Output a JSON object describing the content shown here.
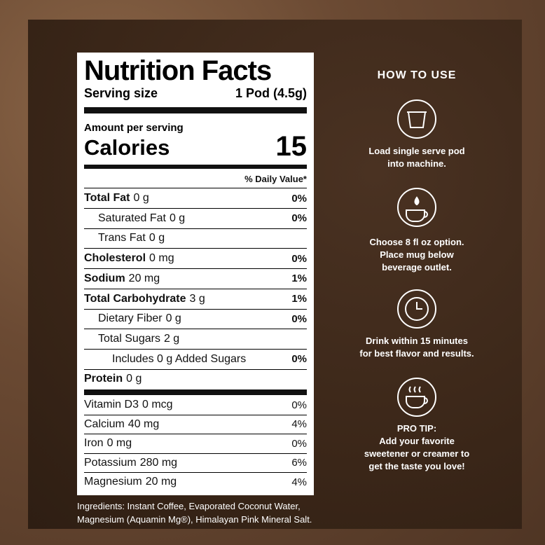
{
  "nutrition": {
    "title": "Nutrition Facts",
    "serving_label": "Serving size",
    "serving_value": "1 Pod (4.5g)",
    "amount_label": "Amount per serving",
    "calories_label": "Calories",
    "calories_value": "15",
    "dv_header": "% Daily Value*",
    "rows": [
      {
        "name": "Total Fat",
        "amount": "0 g",
        "dv": "0%"
      },
      {
        "name": "Saturated Fat",
        "amount": "0 g",
        "dv": "0%"
      },
      {
        "name": "Trans Fat",
        "amount": "0 g"
      },
      {
        "name": "Cholesterol",
        "amount": "0 mg",
        "dv": "0%"
      },
      {
        "name": "Sodium",
        "amount": "20 mg",
        "dv": "1%"
      },
      {
        "name": "Total Carbohydrate",
        "amount": "3 g",
        "dv": "1%"
      },
      {
        "name": "Dietary Fiber",
        "amount": "0 g",
        "dv": "0%"
      },
      {
        "name": "Total Sugars",
        "amount": "2 g"
      },
      {
        "name": "Includes 0 g Added Sugars",
        "dv": "0%"
      },
      {
        "name": "Protein",
        "amount": "0 g"
      }
    ],
    "vitamins": [
      {
        "name": "Vitamin D3",
        "amount": "0 mcg",
        "dv": "0%"
      },
      {
        "name": "Calcium",
        "amount": "40 mg",
        "dv": "4%"
      },
      {
        "name": "Iron",
        "amount": "0 mg",
        "dv": "0%"
      },
      {
        "name": "Potassium",
        "amount": "280 mg",
        "dv": "6%"
      },
      {
        "name": "Magnesium",
        "amount": "20 mg",
        "dv": "4%"
      }
    ]
  },
  "ingredients": [
    "Ingredients: Instant Coffee, Evaporated Coconut Water,",
    "Magnesium (Aquamin Mg®), Himalayan Pink Mineral Salt."
  ],
  "how_to_use": {
    "title": "HOW TO USE",
    "steps": [
      {
        "lines": [
          "Load single serve pod",
          "into machine."
        ]
      },
      {
        "lines": [
          "Choose 8 fl oz option.",
          "Place mug below",
          "beverage outlet."
        ]
      },
      {
        "lines": [
          "Drink within 15 minutes",
          "for best flavor and results."
        ]
      },
      {
        "lines": [
          "PRO TIP:",
          "Add your favorite",
          "sweetener or creamer to",
          "get the taste you love!"
        ]
      }
    ]
  }
}
